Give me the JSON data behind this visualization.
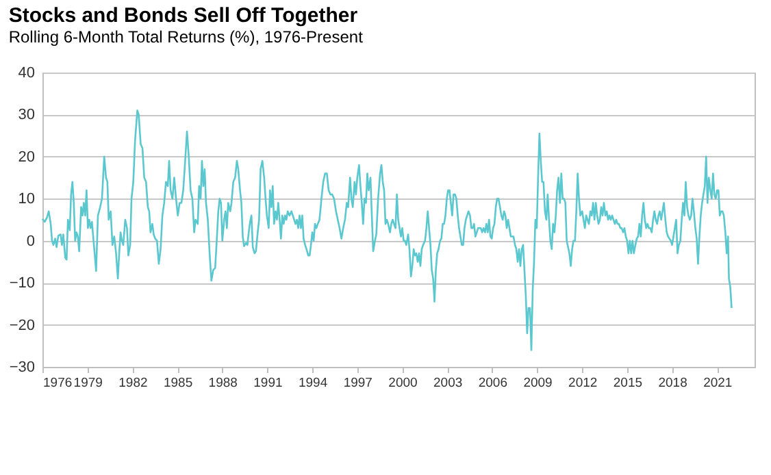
{
  "chart_data": {
    "type": "line",
    "title": "Stocks and Bonds Sell Off Together",
    "subtitle": "Rolling 6-Month Total Returns (%), 1976-Present",
    "xlim": [
      1976,
      2023.5
    ],
    "xticks": [
      1976,
      1979,
      1982,
      1985,
      1988,
      1991,
      1994,
      1997,
      2000,
      2003,
      2006,
      2009,
      2012,
      2015,
      2018,
      2021
    ],
    "ylim": [
      -30,
      40
    ],
    "yticks": [
      -30,
      -20,
      -10,
      0,
      10,
      20,
      30,
      40
    ],
    "grid": "y",
    "series": [
      {
        "color": "#5bc8d0",
        "x": [
          1976.0,
          1976.15,
          1976.3,
          1976.42,
          1976.55,
          1976.64,
          1976.73,
          1976.85,
          1976.94,
          1977.06,
          1977.21,
          1977.3,
          1977.39,
          1977.52,
          1977.61,
          1977.7,
          1977.82,
          1977.91,
          1978.0,
          1978.09,
          1978.18,
          1978.27,
          1978.36,
          1978.45,
          1978.58,
          1978.67,
          1978.76,
          1978.85,
          1978.94,
          1979.03,
          1979.12,
          1979.21,
          1979.3,
          1979.42,
          1979.58,
          1979.7,
          1979.85,
          1979.97,
          1980.12,
          1980.24,
          1980.33,
          1980.42,
          1980.55,
          1980.67,
          1980.79,
          1980.91,
          1981.03,
          1981.12,
          1981.21,
          1981.3,
          1981.39,
          1981.52,
          1981.64,
          1981.73,
          1981.85,
          1981.94,
          1982.06,
          1982.18,
          1982.33,
          1982.42,
          1982.55,
          1982.67,
          1982.79,
          1982.91,
          1983.03,
          1983.12,
          1983.21,
          1983.33,
          1983.42,
          1983.52,
          1983.64,
          1983.76,
          1983.88,
          1984.0,
          1984.12,
          1984.24,
          1984.36,
          1984.45,
          1984.55,
          1984.67,
          1984.79,
          1984.91,
          1985.03,
          1985.15,
          1985.27,
          1985.39,
          1985.52,
          1985.64,
          1985.76,
          1985.88,
          1986.0,
          1986.12,
          1986.21,
          1986.36,
          1986.45,
          1986.55,
          1986.64,
          1986.73,
          1986.82,
          1986.91,
          1987.03,
          1987.15,
          1987.27,
          1987.39,
          1987.52,
          1987.64,
          1987.73,
          1987.82,
          1987.91,
          1988.0,
          1988.12,
          1988.21,
          1988.3,
          1988.39,
          1988.52,
          1988.61,
          1988.73,
          1988.85,
          1988.97,
          1989.06,
          1989.18,
          1989.27,
          1989.36,
          1989.45,
          1989.58,
          1989.67,
          1989.76,
          1989.85,
          1989.94,
          1990.03,
          1990.15,
          1990.24,
          1990.33,
          1990.45,
          1990.55,
          1990.67,
          1990.79,
          1990.88,
          1990.97,
          1991.09,
          1991.18,
          1991.27,
          1991.36,
          1991.45,
          1991.55,
          1991.64,
          1991.73,
          1991.82,
          1991.91,
          1992.0,
          1992.09,
          1992.18,
          1992.27,
          1992.36,
          1992.48,
          1992.61,
          1992.7,
          1992.79,
          1992.88,
          1992.97,
          1993.06,
          1993.15,
          1993.24,
          1993.33,
          1993.42,
          1993.52,
          1993.61,
          1993.73,
          1993.82,
          1993.91,
          1994.0,
          1994.09,
          1994.18,
          1994.27,
          1994.36,
          1994.48,
          1994.61,
          1994.73,
          1994.85,
          1994.97,
          1995.09,
          1995.21,
          1995.33,
          1995.45,
          1995.58,
          1995.7,
          1995.82,
          1995.94,
          1996.06,
          1996.18,
          1996.3,
          1996.39,
          1996.52,
          1996.61,
          1996.7,
          1996.82,
          1996.91,
          1997.0,
          1997.12,
          1997.21,
          1997.3,
          1997.39,
          1997.48,
          1997.58,
          1997.67,
          1997.76,
          1997.88,
          1997.97,
          1998.06,
          1998.18,
          1998.27,
          1998.39,
          1998.52,
          1998.61,
          1998.7,
          1998.79,
          1998.88,
          1998.97,
          1999.06,
          1999.18,
          1999.27,
          1999.36,
          1999.45,
          1999.55,
          1999.64,
          1999.73,
          1999.82,
          1999.91,
          2000.0,
          2000.09,
          2000.18,
          2000.27,
          2000.39,
          2000.48,
          2000.58,
          2000.67,
          2000.76,
          2000.85,
          2000.94,
          2001.03,
          2001.12,
          2001.21,
          2001.3,
          2001.39,
          2001.52,
          2001.61,
          2001.7,
          2001.79,
          2001.88,
          2001.97,
          2002.06,
          2002.15,
          2002.24,
          2002.33,
          2002.42,
          2002.52,
          2002.61,
          2002.7,
          2002.79,
          2002.88,
          2002.97,
          2003.06,
          2003.15,
          2003.24,
          2003.33,
          2003.42,
          2003.52,
          2003.61,
          2003.7,
          2003.79,
          2003.88,
          2003.97,
          2004.06,
          2004.15,
          2004.24,
          2004.33,
          2004.42,
          2004.52,
          2004.61,
          2004.7,
          2004.79,
          2004.88,
          2004.97,
          2005.06,
          2005.15,
          2005.24,
          2005.33,
          2005.42,
          2005.52,
          2005.61,
          2005.7,
          2005.79,
          2005.88,
          2005.97,
          2006.06,
          2006.15,
          2006.24,
          2006.33,
          2006.42,
          2006.52,
          2006.61,
          2006.7,
          2006.79,
          2006.88,
          2006.97,
          2007.06,
          2007.15,
          2007.24,
          2007.33,
          2007.42,
          2007.52,
          2007.61,
          2007.7,
          2007.79,
          2007.88,
          2007.97,
          2008.06,
          2008.15,
          2008.24,
          2008.33,
          2008.42,
          2008.52,
          2008.61,
          2008.7,
          2008.79,
          2008.88,
          2008.97,
          2009.06,
          2009.15,
          2009.24,
          2009.33,
          2009.42,
          2009.52,
          2009.61,
          2009.7,
          2009.79,
          2009.88,
          2009.97,
          2010.06,
          2010.15,
          2010.24,
          2010.33,
          2010.42,
          2010.52,
          2010.61,
          2010.7,
          2010.79,
          2010.88,
          2010.97,
          2011.06,
          2011.15,
          2011.24,
          2011.33,
          2011.42,
          2011.52,
          2011.61,
          2011.7,
          2011.79,
          2011.88,
          2012.0,
          2012.09,
          2012.18,
          2012.27,
          2012.36,
          2012.45,
          2012.55,
          2012.64,
          2012.73,
          2012.82,
          2012.91,
          2013.0,
          2013.09,
          2013.18,
          2013.27,
          2013.36,
          2013.45,
          2013.55,
          2013.64,
          2013.73,
          2013.82,
          2013.91,
          2014.0,
          2014.09,
          2014.18,
          2014.27,
          2014.36,
          2014.45,
          2014.55,
          2014.64,
          2014.73,
          2014.82,
          2014.91,
          2015.0,
          2015.09,
          2015.18,
          2015.27,
          2015.36,
          2015.45,
          2015.55,
          2015.64,
          2015.73,
          2015.82,
          2015.91,
          2016.0,
          2016.09,
          2016.18,
          2016.27,
          2016.36,
          2016.45,
          2016.55,
          2016.64,
          2016.73,
          2016.82,
          2016.91,
          2017.0,
          2017.09,
          2017.18,
          2017.27,
          2017.36,
          2017.45,
          2017.55,
          2017.64,
          2017.73,
          2017.82,
          2017.91,
          2018.0,
          2018.09,
          2018.18,
          2018.27,
          2018.36,
          2018.45,
          2018.55,
          2018.64,
          2018.73,
          2018.82,
          2018.91,
          2019.0,
          2019.09,
          2019.18,
          2019.27,
          2019.36,
          2019.45,
          2019.55,
          2019.64,
          2019.73,
          2019.82,
          2019.91,
          2020.0,
          2020.09,
          2020.18,
          2020.27,
          2020.36,
          2020.45,
          2020.55,
          2020.64,
          2020.73,
          2020.82,
          2020.91,
          2021.0,
          2021.09,
          2021.18,
          2021.27,
          2021.36,
          2021.45,
          2021.55,
          2021.64,
          2021.73,
          2021.79,
          2021.88,
          2021.97
        ],
        "values": [
          5.2,
          4.5,
          5.5,
          7,
          4,
          0,
          -1,
          0.5,
          -1.5,
          1.2,
          1.5,
          -1,
          1.5,
          -4,
          -4.5,
          5,
          2.5,
          11,
          14,
          9,
          0,
          2,
          1,
          -2.5,
          8,
          6,
          9,
          6,
          12,
          3,
          5,
          3,
          4.5,
          -0.5,
          -7.2,
          6,
          8,
          10,
          20,
          15,
          14,
          5,
          7,
          -1,
          1,
          -3,
          -9,
          -3,
          2,
          0,
          -1,
          5,
          3,
          -3.5,
          -1,
          10,
          14,
          24,
          31,
          30,
          23,
          22,
          15,
          14,
          8,
          7,
          2,
          4,
          1.5,
          0.5,
          0,
          -5.5,
          -2,
          6,
          9,
          14,
          13,
          19,
          12,
          10,
          15,
          10,
          6,
          9,
          9,
          12,
          19,
          26,
          20,
          12,
          10,
          2,
          5,
          4,
          13,
          10,
          19,
          13,
          17,
          9,
          5,
          -3,
          -9.5,
          -7,
          -6.5,
          1,
          7,
          10,
          9,
          0,
          5,
          7,
          3,
          9,
          7,
          9,
          14,
          15,
          19,
          17,
          12,
          9,
          1,
          -1.3,
          -0.5,
          -1,
          2,
          4.5,
          6,
          -1.5,
          -3,
          -2.5,
          1,
          5,
          17,
          19,
          15,
          10,
          6,
          3,
          12,
          8,
          13,
          4,
          7,
          5,
          9,
          5,
          0.5,
          6,
          4,
          6,
          5,
          7,
          6,
          7,
          6,
          5,
          4,
          5,
          3,
          6,
          3,
          6,
          0.5,
          -1,
          -2,
          -3.5,
          -3.5,
          -1,
          2,
          0,
          4,
          3,
          4,
          5,
          10,
          14,
          16,
          16,
          12,
          11,
          11,
          10,
          7,
          5,
          3,
          0.5,
          3,
          5,
          9,
          8,
          15,
          10,
          8,
          14,
          11,
          15,
          18,
          13,
          9,
          4,
          10,
          9,
          16,
          12,
          15,
          6,
          -2.5,
          0,
          1.5,
          10,
          16,
          18,
          14,
          12,
          4,
          5,
          4,
          2,
          4,
          5,
          4,
          3,
          11,
          5,
          3,
          1,
          3,
          0,
          0,
          -1,
          1.5,
          -2,
          -8.5,
          -6,
          -2,
          -3.5,
          -3,
          -5,
          -3,
          -6,
          -2,
          -1,
          0,
          3,
          7,
          3,
          -1,
          -7,
          -9,
          -14.5,
          -7,
          -3,
          -2,
          0,
          0.5,
          4,
          4,
          6,
          10,
          12,
          12,
          9,
          6,
          11,
          11,
          10,
          6,
          3,
          1,
          -1,
          -1,
          3,
          5,
          6,
          7,
          6,
          3,
          3,
          4,
          1,
          2,
          3,
          3,
          3,
          2,
          3,
          2,
          4,
          2,
          5,
          1,
          0.5,
          3,
          4,
          8,
          10,
          10,
          8,
          6,
          5,
          7,
          6,
          3,
          5,
          3,
          1,
          1,
          1,
          -1,
          -2,
          -5,
          -2,
          -6,
          -2,
          -1,
          -7,
          -13,
          -22,
          -16,
          -16,
          -26,
          -12,
          -5,
          5,
          3,
          15,
          25.5,
          19,
          14,
          14,
          7,
          5,
          11,
          5,
          0,
          -2,
          4,
          2,
          6,
          12,
          15,
          9,
          16,
          10,
          10,
          9,
          0,
          -1.5,
          -3,
          -6,
          -2,
          0,
          0,
          7,
          16,
          10,
          6,
          7,
          5,
          3,
          6,
          5,
          4,
          7,
          6,
          9,
          5,
          9,
          6,
          4,
          5,
          8,
          6,
          9,
          6,
          7,
          5,
          6,
          5,
          6,
          5,
          4,
          5,
          4,
          4,
          3,
          3,
          2,
          3,
          1,
          0,
          -3,
          0,
          -3,
          0,
          -3,
          -1,
          0.5,
          1,
          4,
          1,
          6,
          9,
          5,
          3,
          4,
          3,
          3,
          2,
          5,
          7,
          5,
          4,
          6,
          7,
          5,
          7,
          9,
          5,
          2,
          1,
          0.5,
          0,
          -1,
          1,
          3,
          5,
          -3,
          -1,
          0,
          5,
          9,
          6,
          14,
          8,
          6,
          5,
          6,
          10,
          7,
          3,
          0.5,
          -5.5,
          1,
          6,
          9,
          11,
          13,
          20,
          9,
          15,
          12,
          10,
          16,
          11,
          10,
          12,
          12,
          6,
          7,
          7,
          6,
          2,
          -3,
          1,
          -9,
          -11,
          -16
        ]
      }
    ]
  }
}
